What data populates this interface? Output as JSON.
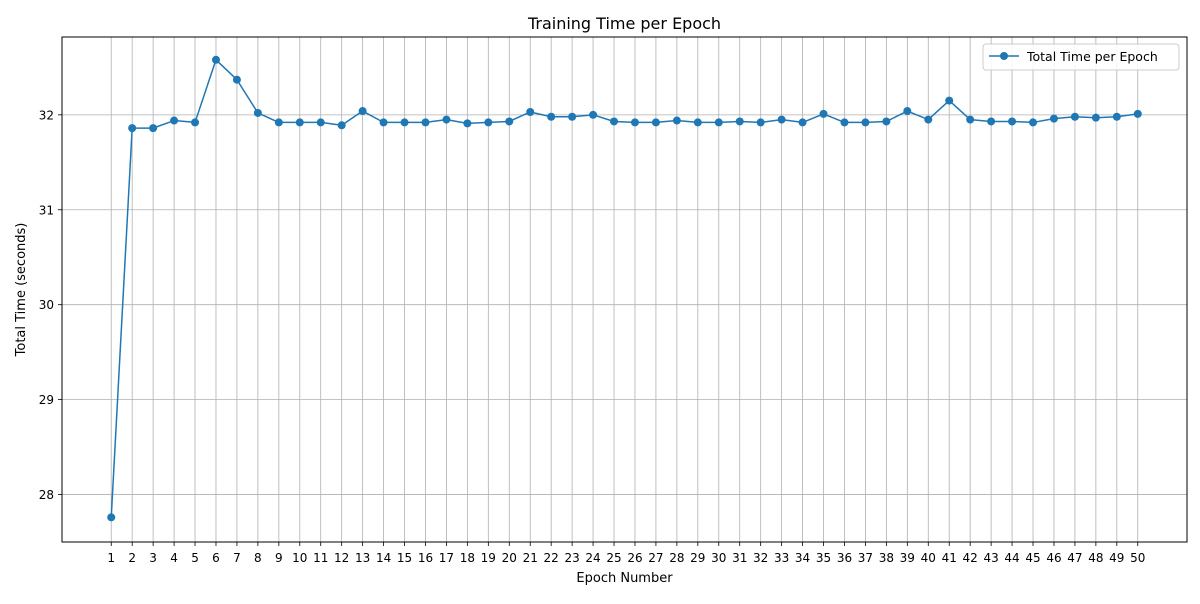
{
  "chart_data": {
    "type": "line",
    "title": "Training Time per Epoch",
    "xlabel": "Epoch Number",
    "ylabel": "Total Time (seconds)",
    "x": [
      1,
      2,
      3,
      4,
      5,
      6,
      7,
      8,
      9,
      10,
      11,
      12,
      13,
      14,
      15,
      16,
      17,
      18,
      19,
      20,
      21,
      22,
      23,
      24,
      25,
      26,
      27,
      28,
      29,
      30,
      31,
      32,
      33,
      34,
      35,
      36,
      37,
      38,
      39,
      40,
      41,
      42,
      43,
      44,
      45,
      46,
      47,
      48,
      49,
      50
    ],
    "x_tick_labels": [
      "1",
      "2",
      "3",
      "4",
      "5",
      "6",
      "7",
      "8",
      "9",
      "10",
      "11",
      "12",
      "13",
      "14",
      "15",
      "16",
      "17",
      "18",
      "19",
      "20",
      "21",
      "22",
      "23",
      "24",
      "25",
      "26",
      "27",
      "28",
      "29",
      "30",
      "31",
      "32",
      "33",
      "34",
      "35",
      "36",
      "37",
      "38",
      "39",
      "40",
      "41",
      "42",
      "43",
      "44",
      "45",
      "46",
      "47",
      "48",
      "49",
      "50"
    ],
    "y_ticks": [
      28,
      29,
      30,
      31,
      32
    ],
    "y_tick_labels": [
      "28",
      "29",
      "30",
      "31",
      "32"
    ],
    "xlim": [
      -1.35,
      52.35
    ],
    "ylim": [
      27.5,
      32.82
    ],
    "grid": true,
    "legend_position": "top-right",
    "series": [
      {
        "name": "Total Time per Epoch",
        "color": "#1f77b4",
        "marker": "circle",
        "values": [
          27.76,
          31.86,
          31.86,
          31.94,
          31.92,
          32.58,
          32.37,
          32.02,
          31.92,
          31.92,
          31.92,
          31.89,
          32.04,
          31.92,
          31.92,
          31.92,
          31.95,
          31.91,
          31.92,
          31.93,
          32.03,
          31.98,
          31.98,
          32.0,
          31.93,
          31.92,
          31.92,
          31.94,
          31.92,
          31.92,
          31.93,
          31.92,
          31.95,
          31.92,
          32.01,
          31.92,
          31.92,
          31.93,
          32.04,
          31.95,
          32.15,
          31.95,
          31.93,
          31.93,
          31.92,
          31.96,
          31.98,
          31.97,
          31.98,
          32.01
        ]
      }
    ]
  }
}
